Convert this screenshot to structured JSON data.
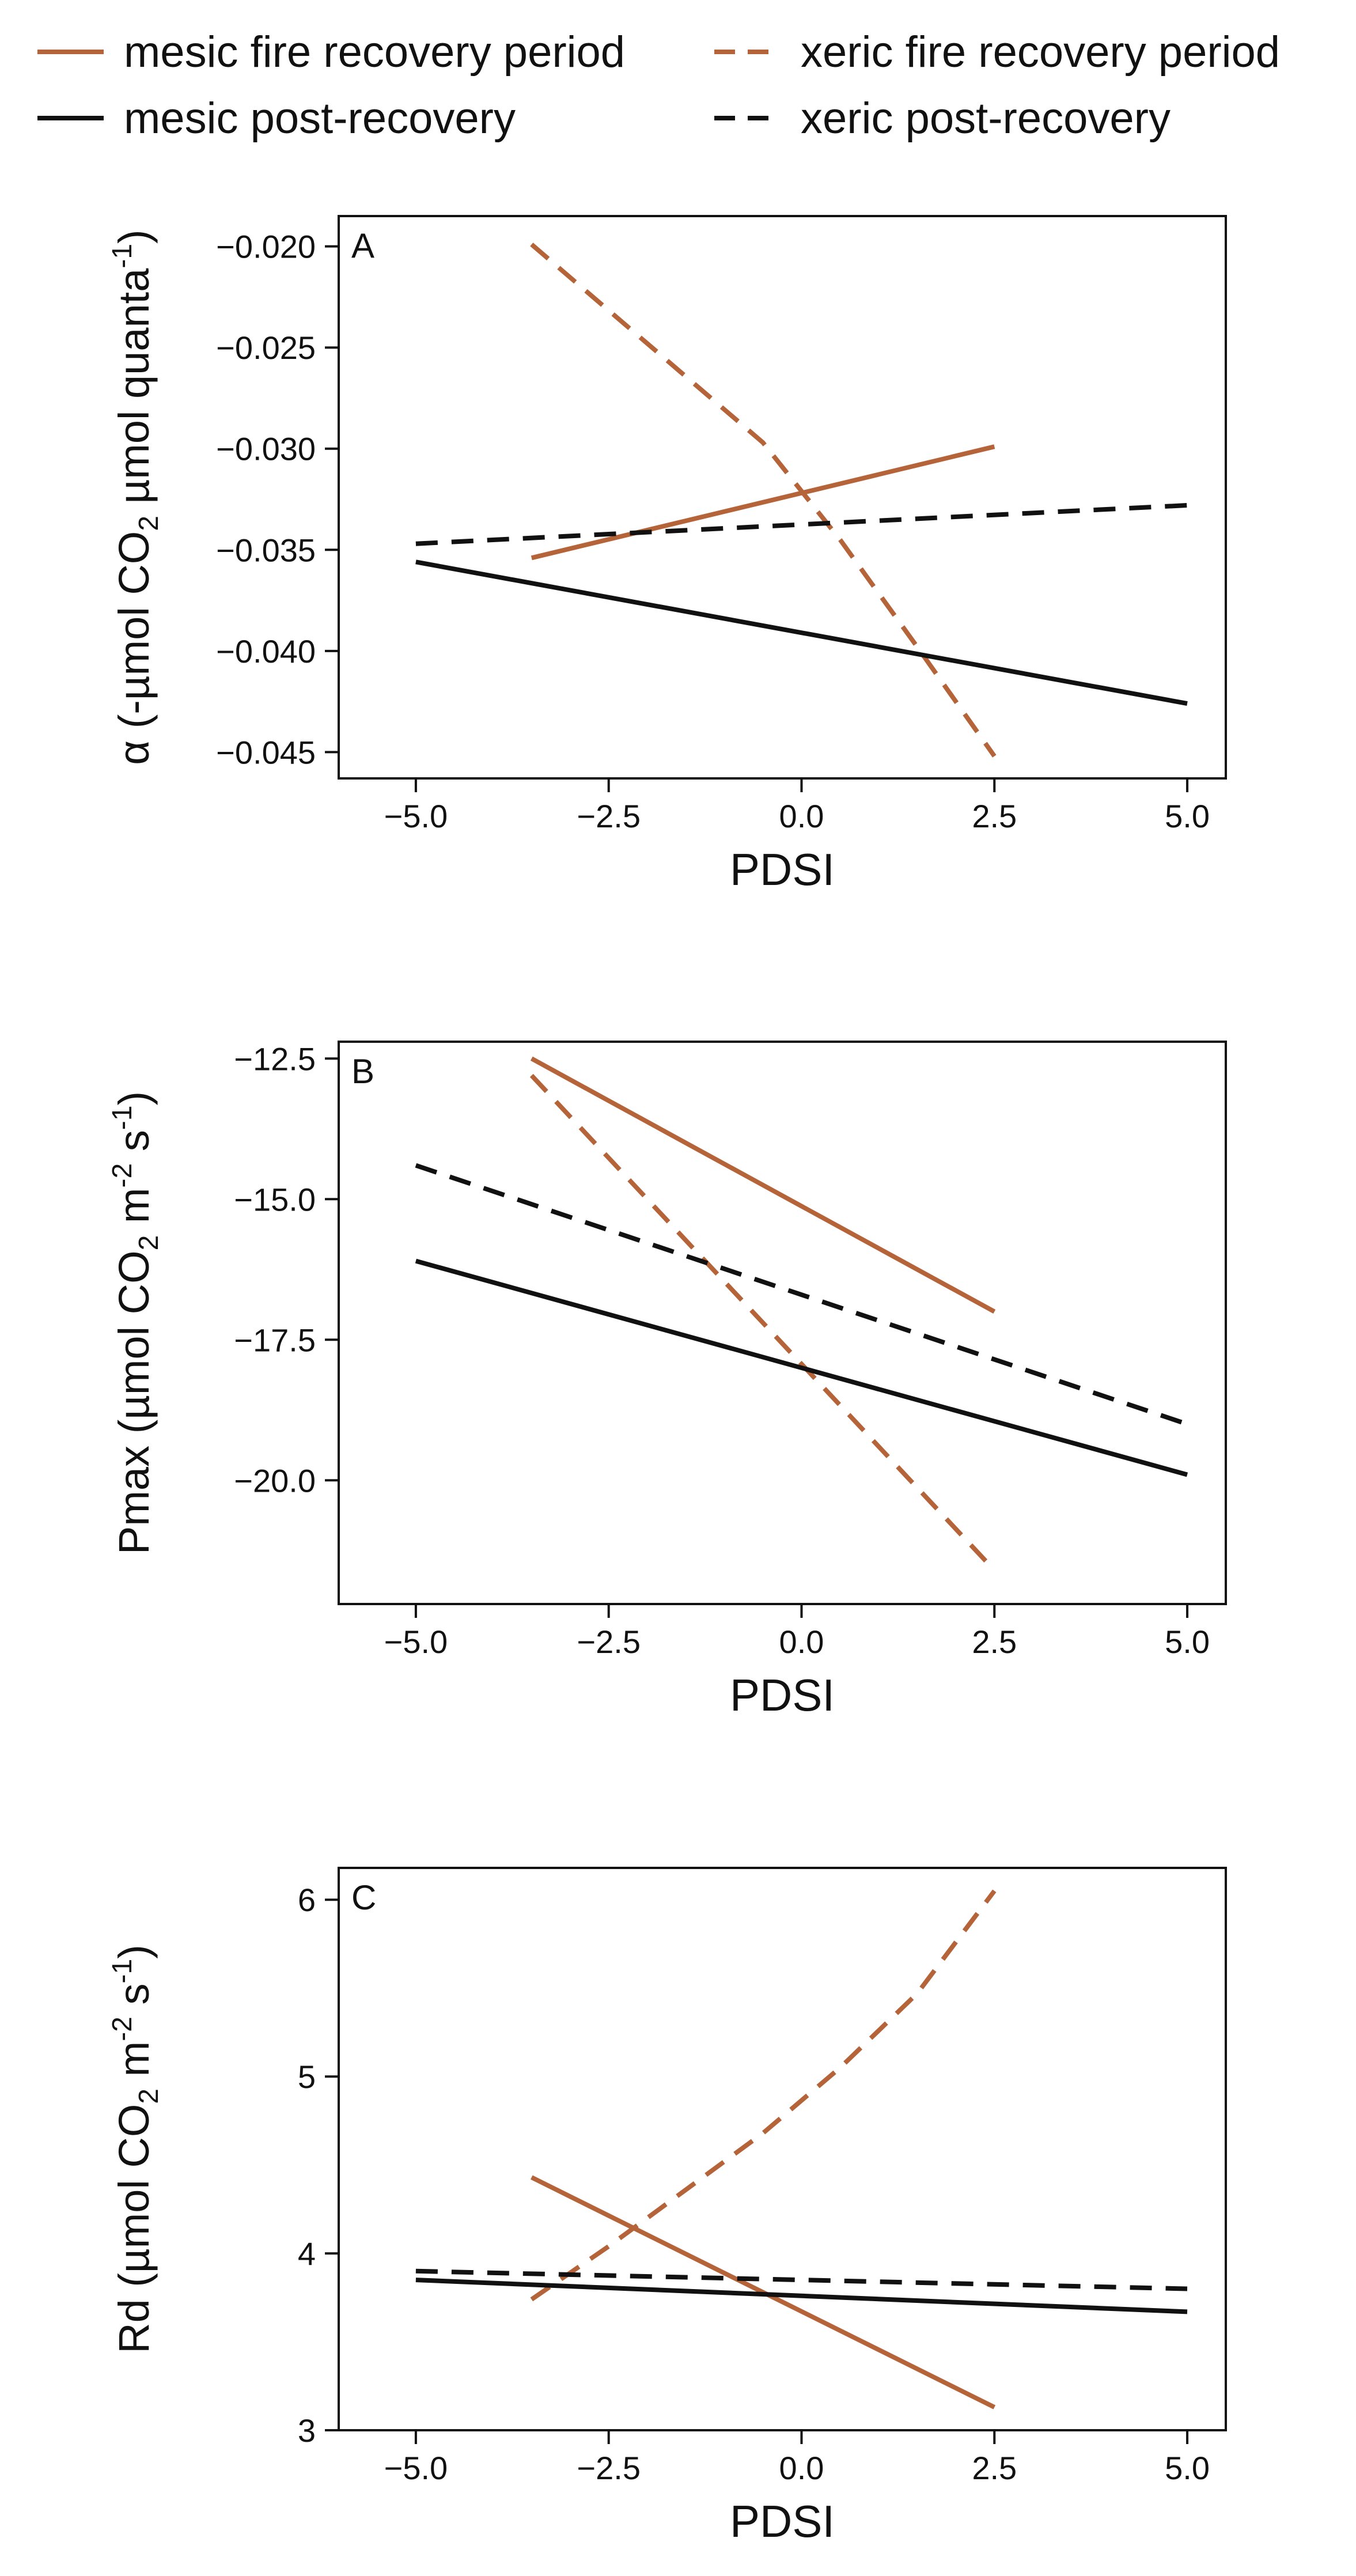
{
  "legend": [
    {
      "label": "mesic fire recovery period",
      "color": "#b5643a",
      "dashed": false
    },
    {
      "label": "xeric fire recovery period",
      "color": "#b5643a",
      "dashed": true
    },
    {
      "label": "mesic post-recovery",
      "color": "#111111",
      "dashed": false
    },
    {
      "label": "xeric post-recovery",
      "color": "#111111",
      "dashed": true
    }
  ],
  "chart_data": [
    {
      "type": "line",
      "panel_label": "A",
      "xlabel": "PDSI",
      "ylabel_parts": [
        "α (-µmol CO",
        "2",
        " µmol quanta",
        "-1",
        ")"
      ],
      "xlim": [
        -6.0,
        5.5
      ],
      "ylim": [
        -0.0463,
        -0.0185
      ],
      "xticks": [
        -5.0,
        -2.5,
        0.0,
        2.5,
        5.0
      ],
      "xtick_labels": [
        "−5.0",
        "−2.5",
        "0.0",
        "2.5",
        "5.0"
      ],
      "yticks": [
        -0.02,
        -0.025,
        -0.03,
        -0.035,
        -0.04,
        -0.045
      ],
      "ytick_labels": [
        "−0.020",
        "−0.025",
        "−0.030",
        "−0.035",
        "−0.040",
        "−0.045"
      ],
      "series": [
        {
          "name": "mesic fire recovery period",
          "x": [
            -3.5,
            2.5
          ],
          "y": [
            -0.0354,
            -0.0299
          ]
        },
        {
          "name": "xeric fire recovery period",
          "x": [
            -3.5,
            -2.0,
            -0.5,
            0.5,
            1.5,
            2.5
          ],
          "y": [
            -0.0199,
            -0.0248,
            -0.0297,
            -0.0345,
            -0.0398,
            -0.0452
          ]
        },
        {
          "name": "mesic post-recovery",
          "x": [
            -5.0,
            5.0
          ],
          "y": [
            -0.0356,
            -0.0426
          ]
        },
        {
          "name": "xeric post-recovery",
          "x": [
            -5.0,
            5.0
          ],
          "y": [
            -0.0347,
            -0.0328
          ]
        }
      ]
    },
    {
      "type": "line",
      "panel_label": "B",
      "xlabel": "PDSI",
      "ylabel_parts": [
        "Pmax (µmol CO",
        "2",
        " m",
        "-2",
        " s",
        "-1",
        ")"
      ],
      "xlim": [
        -6.0,
        5.5
      ],
      "ylim": [
        -22.2,
        -12.2
      ],
      "xticks": [
        -5.0,
        -2.5,
        0.0,
        2.5,
        5.0
      ],
      "xtick_labels": [
        "−5.0",
        "−2.5",
        "0.0",
        "2.5",
        "5.0"
      ],
      "yticks": [
        -12.5,
        -15.0,
        -17.5,
        -20.0
      ],
      "ytick_labels": [
        "−12.5",
        "−15.0",
        "−17.5",
        "−20.0"
      ],
      "series": [
        {
          "name": "mesic fire recovery period",
          "x": [
            -3.5,
            2.5
          ],
          "y": [
            -12.5,
            -17.0
          ]
        },
        {
          "name": "xeric fire recovery period",
          "x": [
            -3.5,
            2.5
          ],
          "y": [
            -12.8,
            -21.6
          ]
        },
        {
          "name": "mesic post-recovery",
          "x": [
            -5.0,
            5.0
          ],
          "y": [
            -16.1,
            -19.9
          ]
        },
        {
          "name": "xeric post-recovery",
          "x": [
            -5.0,
            5.0
          ],
          "y": [
            -14.4,
            -19.0
          ]
        }
      ]
    },
    {
      "type": "line",
      "panel_label": "C",
      "xlabel": "PDSI",
      "ylabel_parts": [
        "Rd (µmol CO",
        "2",
        " m",
        "-2",
        " s",
        "-1",
        ")"
      ],
      "xlim": [
        -6.0,
        5.5
      ],
      "ylim": [
        3.0,
        6.18
      ],
      "xticks": [
        -5.0,
        -2.5,
        0.0,
        2.5,
        5.0
      ],
      "xtick_labels": [
        "−5.0",
        "−2.5",
        "0.0",
        "2.5",
        "5.0"
      ],
      "yticks": [
        3,
        4,
        5,
        6
      ],
      "ytick_labels": [
        "3",
        "4",
        "5",
        "6"
      ],
      "series": [
        {
          "name": "mesic fire recovery period",
          "x": [
            -3.5,
            2.5
          ],
          "y": [
            4.43,
            3.13
          ]
        },
        {
          "name": "xeric fire recovery period",
          "x": [
            -3.5,
            -2.5,
            -1.5,
            -0.5,
            0.5,
            1.5,
            2.5
          ],
          "y": [
            3.74,
            4.04,
            4.36,
            4.68,
            5.05,
            5.47,
            6.05
          ]
        },
        {
          "name": "mesic post-recovery",
          "x": [
            -5.0,
            5.0
          ],
          "y": [
            3.85,
            3.67
          ]
        },
        {
          "name": "xeric post-recovery",
          "x": [
            -5.0,
            5.0
          ],
          "y": [
            3.9,
            3.8
          ]
        }
      ]
    }
  ]
}
